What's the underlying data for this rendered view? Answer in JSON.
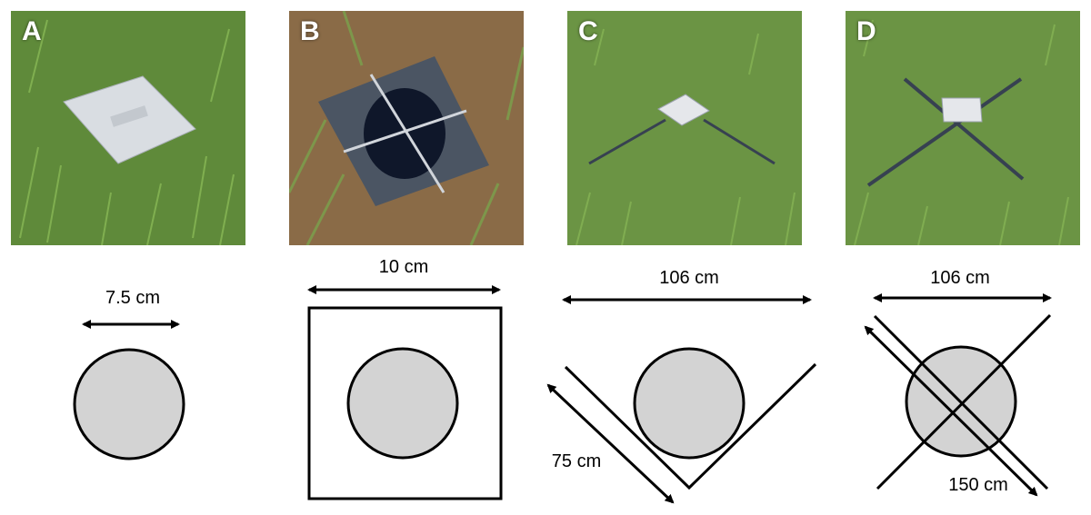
{
  "panels": [
    {
      "letter": "A",
      "dimension_labels": [
        "7.5 cm"
      ]
    },
    {
      "letter": "B",
      "dimension_labels": [
        "10 cm"
      ]
    },
    {
      "letter": "C",
      "dimension_labels": [
        "106 cm",
        "75 cm"
      ]
    },
    {
      "letter": "D",
      "dimension_labels": [
        "106 cm",
        "150 cm"
      ]
    }
  ],
  "colors": {
    "grass": "#5f8a3a",
    "grass_light": "#7aa34c",
    "soil": "#8a6b47",
    "metal_plate": "#d9dde2",
    "dark_plate": "#4b5563",
    "trap_fill": "#d3d3d3",
    "stroke": "#000000"
  }
}
